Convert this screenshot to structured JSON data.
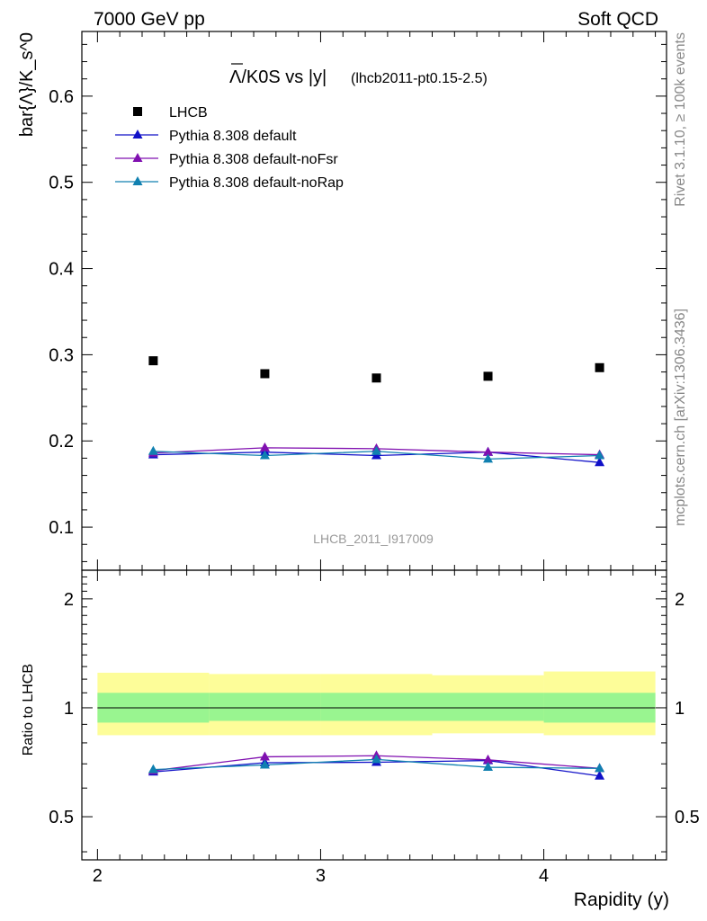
{
  "header": {
    "left": "7000 GeV pp",
    "right": "Soft QCD"
  },
  "title": {
    "main": "Λ/K0S vs |y|",
    "sub": "(lhcb2011-pt0.15-2.5)"
  },
  "side_labels": {
    "rivet": "Rivet 3.1.10, ≥ 100k events",
    "mcplots": "mcplots.cern.ch [arXiv:1306.3436]"
  },
  "watermark": "LHCB_2011_I917009",
  "colors": {
    "lhcb": "#000000",
    "default": "#1010c8",
    "noFsr": "#8010b0",
    "noRap": "#1080b0",
    "band_inner": "#99f590",
    "band_outer": "#fdfd99"
  },
  "chart_data": [
    {
      "type": "scatter",
      "ylabel": "bar{Λ}/K_s^0",
      "xlim": [
        1.93,
        4.55
      ],
      "ylim": [
        0.05,
        0.675
      ],
      "yticks": [
        "0.1",
        "0.2",
        "0.3",
        "0.4",
        "0.5",
        "0.6"
      ],
      "legend_position": "top-left",
      "x": [
        2.25,
        2.75,
        3.25,
        3.75,
        4.25
      ],
      "series": [
        {
          "name": "LHCB",
          "marker": "square",
          "values": [
            0.293,
            0.278,
            0.273,
            0.275,
            0.285
          ]
        },
        {
          "name": "Pythia 8.308 default",
          "marker": "triangle",
          "values": [
            0.184,
            0.187,
            0.183,
            0.187,
            0.175
          ]
        },
        {
          "name": "Pythia 8.308 default-noFsr",
          "marker": "triangle",
          "values": [
            0.186,
            0.192,
            0.191,
            0.187,
            0.184
          ]
        },
        {
          "name": "Pythia 8.308 default-noRap",
          "marker": "triangle",
          "values": [
            0.188,
            0.183,
            0.188,
            0.179,
            0.183
          ]
        }
      ]
    },
    {
      "type": "line",
      "ylabel": "Ratio to LHCB",
      "xlabel": "Rapidity (y)",
      "xlim": [
        1.93,
        4.55
      ],
      "xticks": [
        "2",
        "3",
        "4"
      ],
      "ylim": [
        0.38,
        2.4
      ],
      "yticks": [
        "0.5",
        "1",
        "2"
      ],
      "x": [
        2.25,
        2.75,
        3.25,
        3.75,
        4.25
      ],
      "bands": {
        "bins": [
          [
            2.0,
            2.5
          ],
          [
            2.5,
            3.0
          ],
          [
            3.0,
            3.5
          ],
          [
            3.5,
            4.0
          ],
          [
            4.0,
            4.5
          ]
        ],
        "inner": [
          [
            0.91,
            1.1
          ],
          [
            0.92,
            1.1
          ],
          [
            0.92,
            1.1
          ],
          [
            0.92,
            1.1
          ],
          [
            0.91,
            1.1
          ]
        ],
        "outer": [
          [
            0.84,
            1.25
          ],
          [
            0.84,
            1.24
          ],
          [
            0.84,
            1.24
          ],
          [
            0.85,
            1.23
          ],
          [
            0.84,
            1.26
          ]
        ]
      },
      "series": [
        {
          "name": "Pythia 8.308 default",
          "values": [
            0.665,
            0.705,
            0.707,
            0.715,
            0.648
          ]
        },
        {
          "name": "Pythia 8.308 default-noFsr",
          "values": [
            0.67,
            0.732,
            0.737,
            0.718,
            0.68
          ]
        },
        {
          "name": "Pythia 8.308 default-noRap",
          "values": [
            0.675,
            0.695,
            0.72,
            0.685,
            0.68
          ]
        }
      ]
    }
  ]
}
